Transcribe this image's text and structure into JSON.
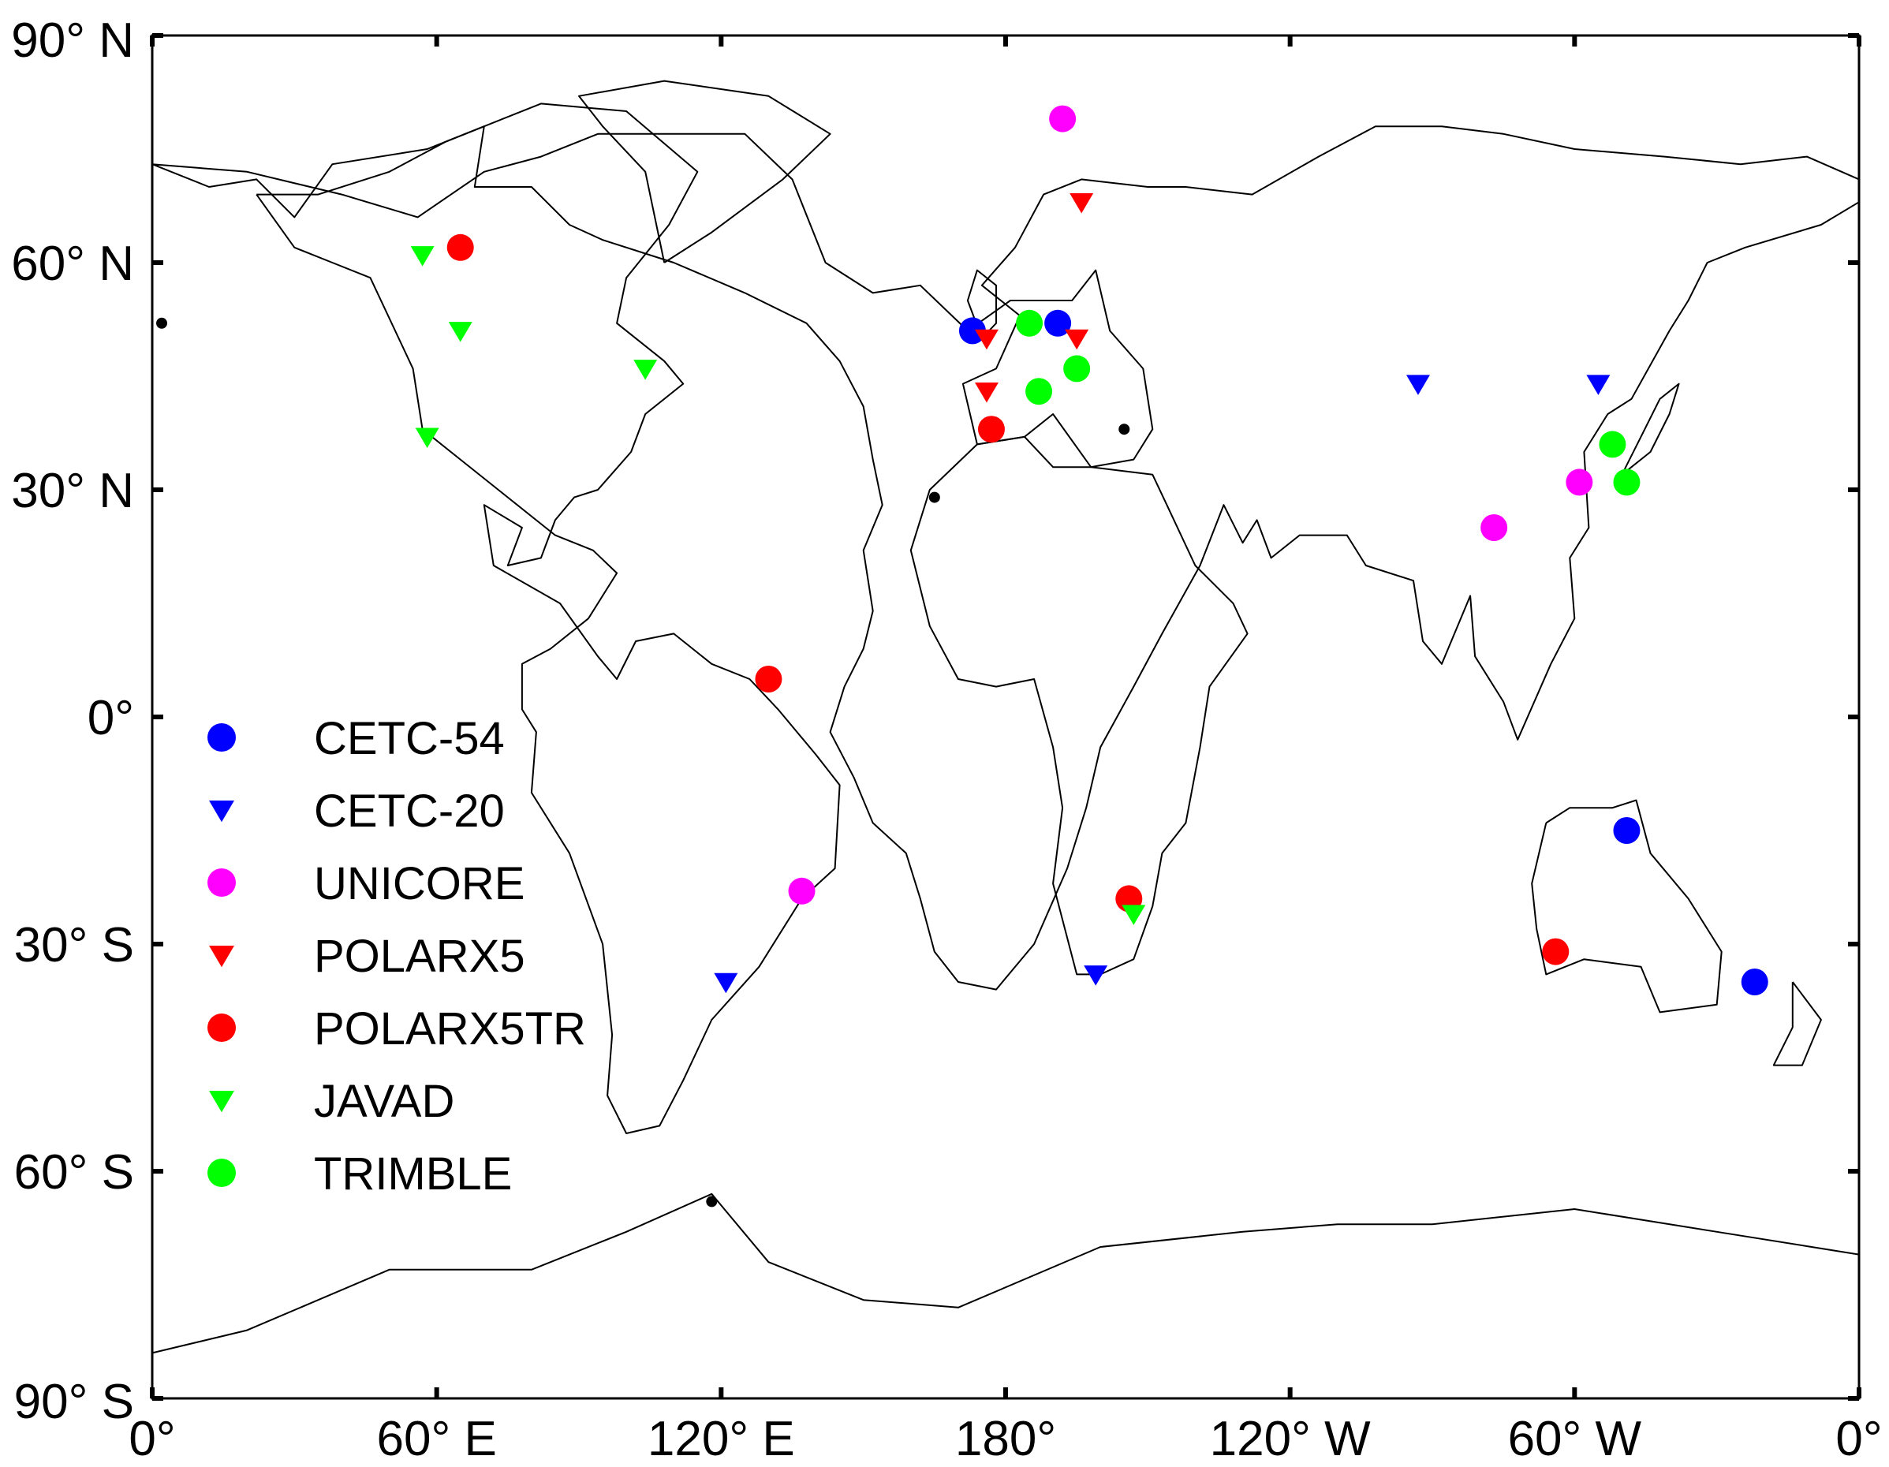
{
  "map": {
    "projection": "equirectangular",
    "lon_range_east": [
      0,
      360
    ],
    "lat_range": [
      -90,
      90
    ],
    "x_ticks": [
      {
        "lon_east": 0,
        "label": "0°"
      },
      {
        "lon_east": 60,
        "label": "60° E"
      },
      {
        "lon_east": 120,
        "label": "120° E"
      },
      {
        "lon_east": 180,
        "label": "180°"
      },
      {
        "lon_east": 240,
        "label": "120° W"
      },
      {
        "lon_east": 300,
        "label": "60° W"
      },
      {
        "lon_east": 360,
        "label": "0°"
      }
    ],
    "y_ticks": [
      {
        "lat": 90,
        "label": "90° N"
      },
      {
        "lat": 60,
        "label": "60° N"
      },
      {
        "lat": 30,
        "label": "30° N"
      },
      {
        "lat": 0,
        "label": "0°"
      },
      {
        "lat": -30,
        "label": "30° S"
      },
      {
        "lat": -60,
        "label": "60° S"
      },
      {
        "lat": -90,
        "label": "90° S"
      }
    ]
  },
  "legend": {
    "placement": "lower-left",
    "entries": [
      {
        "label": "CETC-54",
        "marker": "circle",
        "color": "#0000ff"
      },
      {
        "label": "CETC-20",
        "marker": "triangle",
        "color": "#0000ff"
      },
      {
        "label": "UNICORE",
        "marker": "circle",
        "color": "#ff00ff"
      },
      {
        "label": "POLARX5",
        "marker": "triangle",
        "color": "#ff0000"
      },
      {
        "label": "POLARX5TR",
        "marker": "circle",
        "color": "#ff0000"
      },
      {
        "label": "JAVAD",
        "marker": "triangle",
        "color": "#00ff00"
      },
      {
        "label": "TRIMBLE",
        "marker": "circle",
        "color": "#00ff00"
      }
    ]
  },
  "stations": [
    {
      "receiver": "CETC-54",
      "lon_east": 173,
      "lat": 51
    },
    {
      "receiver": "CETC-54",
      "lon_east": 191,
      "lat": 52
    },
    {
      "receiver": "CETC-54",
      "lon_east": 311,
      "lat": -15
    },
    {
      "receiver": "CETC-54",
      "lon_east": 338,
      "lat": -35
    },
    {
      "receiver": "CETC-20",
      "lon_east": 121,
      "lat": -35
    },
    {
      "receiver": "CETC-20",
      "lon_east": 199,
      "lat": -34
    },
    {
      "receiver": "CETC-20",
      "lon_east": 267,
      "lat": 44
    },
    {
      "receiver": "CETC-20",
      "lon_east": 305,
      "lat": 44
    },
    {
      "receiver": "UNICORE",
      "lon_east": 137,
      "lat": -23
    },
    {
      "receiver": "UNICORE",
      "lon_east": 192,
      "lat": 79
    },
    {
      "receiver": "UNICORE",
      "lon_east": 283,
      "lat": 25
    },
    {
      "receiver": "UNICORE",
      "lon_east": 301,
      "lat": 31
    },
    {
      "receiver": "POLARX5",
      "lon_east": 176,
      "lat": 50
    },
    {
      "receiver": "POLARX5",
      "lon_east": 196,
      "lat": 68
    },
    {
      "receiver": "POLARX5",
      "lon_east": 195,
      "lat": 50
    },
    {
      "receiver": "POLARX5",
      "lon_east": 176,
      "lat": 43
    },
    {
      "receiver": "POLARX5TR",
      "lon_east": 65,
      "lat": 62
    },
    {
      "receiver": "POLARX5TR",
      "lon_east": 130,
      "lat": 5
    },
    {
      "receiver": "POLARX5TR",
      "lon_east": 177,
      "lat": 38
    },
    {
      "receiver": "POLARX5TR",
      "lon_east": 206,
      "lat": -24
    },
    {
      "receiver": "POLARX5TR",
      "lon_east": 296,
      "lat": -31
    },
    {
      "receiver": "JAVAD",
      "lon_east": 57,
      "lat": 61
    },
    {
      "receiver": "JAVAD",
      "lon_east": 65,
      "lat": 51
    },
    {
      "receiver": "JAVAD",
      "lon_east": 58,
      "lat": 37
    },
    {
      "receiver": "JAVAD",
      "lon_east": 104,
      "lat": 46
    },
    {
      "receiver": "JAVAD",
      "lon_east": 207,
      "lat": -26
    },
    {
      "receiver": "TRIMBLE",
      "lon_east": 185,
      "lat": 52
    },
    {
      "receiver": "TRIMBLE",
      "lon_east": 187,
      "lat": 43
    },
    {
      "receiver": "TRIMBLE",
      "lon_east": 195,
      "lat": 46
    },
    {
      "receiver": "TRIMBLE",
      "lon_east": 308,
      "lat": 36
    },
    {
      "receiver": "TRIMBLE",
      "lon_east": 311,
      "lat": 31
    }
  ],
  "small_markers": [
    {
      "lon_east": 2,
      "lat": 52
    },
    {
      "lon_east": 165,
      "lat": 29
    },
    {
      "lon_east": 205,
      "lat": 38
    },
    {
      "lon_east": 118,
      "lat": -64
    }
  ],
  "coastlines": [
    {
      "name": "eurasia-africa",
      "points": [
        [
          0,
          73
        ],
        [
          12,
          70
        ],
        [
          22,
          71
        ],
        [
          30,
          66
        ],
        [
          38,
          73
        ],
        [
          58,
          75
        ],
        [
          70,
          78
        ],
        [
          68,
          70
        ],
        [
          80,
          70
        ],
        [
          88,
          65
        ],
        [
          95,
          63
        ],
        [
          110,
          60
        ],
        [
          125,
          56
        ],
        [
          138,
          52
        ],
        [
          145,
          47
        ],
        [
          150,
          41
        ],
        [
          152,
          34
        ],
        [
          154,
          28
        ],
        [
          150,
          22
        ],
        [
          152,
          14
        ],
        [
          150,
          9
        ],
        [
          146,
          4
        ],
        [
          143,
          -2
        ],
        [
          148,
          -8
        ],
        [
          152,
          -14
        ],
        [
          159,
          -18
        ],
        [
          162,
          -24
        ],
        [
          165,
          -31
        ],
        [
          170,
          -35
        ],
        [
          178,
          -36
        ],
        [
          186,
          -30
        ],
        [
          193,
          -20
        ],
        [
          197,
          -12
        ],
        [
          200,
          -4
        ],
        [
          207,
          4
        ],
        [
          213,
          11
        ],
        [
          221,
          20
        ],
        [
          226,
          28
        ],
        [
          230,
          23
        ],
        [
          233,
          26
        ],
        [
          236,
          21
        ],
        [
          242,
          24
        ],
        [
          252,
          24
        ],
        [
          256,
          20
        ],
        [
          266,
          18
        ],
        [
          268,
          10
        ],
        [
          272,
          7
        ],
        [
          278,
          16
        ],
        [
          279,
          8
        ],
        [
          285,
          2
        ],
        [
          288,
          -3
        ],
        [
          295,
          7
        ],
        [
          300,
          13
        ],
        [
          299,
          21
        ],
        [
          303,
          25
        ],
        [
          302,
          35
        ],
        [
          307,
          40
        ],
        [
          312,
          42
        ],
        [
          320,
          51
        ],
        [
          324,
          55
        ],
        [
          328,
          60
        ],
        [
          336,
          62
        ],
        [
          352,
          65
        ],
        [
          360,
          68
        ],
        [
          360,
          71
        ],
        [
          349,
          74
        ],
        [
          335,
          73
        ],
        [
          319,
          74
        ],
        [
          300,
          75
        ],
        [
          285,
          77
        ],
        [
          272,
          78
        ],
        [
          258,
          78
        ],
        [
          246,
          74
        ],
        [
          232,
          69
        ],
        [
          218,
          70
        ],
        [
          210,
          70
        ],
        [
          196,
          71
        ],
        [
          188,
          69
        ],
        [
          182,
          62
        ],
        [
          175,
          57
        ],
        [
          183,
          53
        ],
        [
          178,
          46
        ],
        [
          171,
          44
        ],
        [
          174,
          36
        ],
        [
          184,
          37
        ],
        [
          190,
          40
        ],
        [
          198,
          33
        ],
        [
          207,
          34
        ],
        [
          211,
          38
        ],
        [
          209,
          46
        ],
        [
          202,
          51
        ],
        [
          199,
          59
        ],
        [
          194,
          55
        ],
        [
          181,
          55
        ],
        [
          172,
          51
        ],
        [
          162,
          57
        ],
        [
          152,
          56
        ],
        [
          142,
          60
        ],
        [
          135,
          71
        ],
        [
          125,
          77
        ],
        [
          103,
          77
        ],
        [
          94,
          77
        ],
        [
          82,
          74
        ],
        [
          70,
          72
        ],
        [
          56,
          66
        ],
        [
          40,
          69
        ],
        [
          20,
          72
        ],
        [
          0,
          73
        ]
      ]
    },
    {
      "name": "africa",
      "points": [
        [
          174,
          36
        ],
        [
          164,
          30
        ],
        [
          160,
          22
        ],
        [
          164,
          12
        ],
        [
          170,
          5
        ],
        [
          178,
          4
        ],
        [
          186,
          5
        ],
        [
          190,
          -4
        ],
        [
          192,
          -12
        ],
        [
          190,
          -22
        ],
        [
          195,
          -34
        ],
        [
          200,
          -34
        ],
        [
          207,
          -32
        ],
        [
          211,
          -25
        ],
        [
          213,
          -18
        ],
        [
          218,
          -14
        ],
        [
          221,
          -4
        ],
        [
          223,
          4
        ],
        [
          231,
          11
        ],
        [
          228,
          15
        ],
        [
          220,
          20
        ],
        [
          214,
          28
        ],
        [
          211,
          32
        ],
        [
          198,
          33
        ],
        [
          190,
          33
        ],
        [
          184,
          37
        ],
        [
          174,
          36
        ]
      ]
    },
    {
      "name": "americas",
      "points": [
        [
          22,
          69
        ],
        [
          35,
          69
        ],
        [
          50,
          72
        ],
        [
          62,
          76
        ],
        [
          82,
          81
        ],
        [
          100,
          80
        ],
        [
          115,
          72
        ],
        [
          109,
          65
        ],
        [
          100,
          58
        ],
        [
          98,
          52
        ],
        [
          108,
          47
        ],
        [
          112,
          44
        ],
        [
          104,
          40
        ],
        [
          101,
          35
        ],
        [
          94,
          30
        ],
        [
          89,
          29
        ],
        [
          85,
          26
        ],
        [
          82,
          21
        ],
        [
          75,
          20
        ],
        [
          78,
          25
        ],
        [
          70,
          28
        ],
        [
          72,
          20
        ],
        [
          86,
          15
        ],
        [
          94,
          8
        ],
        [
          98,
          5
        ],
        [
          102,
          10
        ],
        [
          110,
          11
        ],
        [
          118,
          7
        ],
        [
          126,
          5
        ],
        [
          132,
          1
        ],
        [
          140,
          -5
        ],
        [
          145,
          -9
        ],
        [
          144,
          -20
        ],
        [
          137,
          -24
        ],
        [
          128,
          -33
        ],
        [
          118,
          -40
        ],
        [
          112,
          -48
        ],
        [
          107,
          -54
        ],
        [
          100,
          -55
        ],
        [
          96,
          -50
        ],
        [
          97,
          -42
        ],
        [
          95,
          -30
        ],
        [
          88,
          -18
        ],
        [
          80,
          -10
        ],
        [
          81,
          -2
        ],
        [
          78,
          1
        ],
        [
          78,
          7
        ],
        [
          84,
          9
        ],
        [
          92,
          13
        ],
        [
          98,
          19
        ],
        [
          93,
          22
        ],
        [
          85,
          24
        ],
        [
          75,
          29
        ],
        [
          65,
          34
        ],
        [
          57,
          38
        ],
        [
          55,
          46
        ],
        [
          46,
          58
        ],
        [
          38,
          60
        ],
        [
          30,
          62
        ],
        [
          22,
          69
        ]
      ]
    },
    {
      "name": "greenland",
      "points": [
        [
          108,
          60
        ],
        [
          118,
          64
        ],
        [
          133,
          71
        ],
        [
          143,
          77
        ],
        [
          130,
          82
        ],
        [
          108,
          84
        ],
        [
          90,
          82
        ],
        [
          95,
          78
        ],
        [
          104,
          72
        ],
        [
          108,
          60
        ]
      ]
    },
    {
      "name": "australia",
      "points": [
        [
          294,
          -14
        ],
        [
          299,
          -12
        ],
        [
          308,
          -12
        ],
        [
          313,
          -11
        ],
        [
          316,
          -18
        ],
        [
          324,
          -24
        ],
        [
          331,
          -31
        ],
        [
          330,
          -38
        ],
        [
          318,
          -39
        ],
        [
          314,
          -33
        ],
        [
          302,
          -32
        ],
        [
          294,
          -34
        ],
        [
          292,
          -28
        ],
        [
          291,
          -22
        ],
        [
          294,
          -14
        ]
      ]
    },
    {
      "name": "antarctica",
      "points": [
        [
          0,
          -84
        ],
        [
          20,
          -81
        ],
        [
          50,
          -73
        ],
        [
          80,
          -73
        ],
        [
          100,
          -68
        ],
        [
          118,
          -63
        ],
        [
          130,
          -72
        ],
        [
          150,
          -77
        ],
        [
          170,
          -78
        ],
        [
          200,
          -70
        ],
        [
          230,
          -68
        ],
        [
          250,
          -67
        ],
        [
          270,
          -67
        ],
        [
          300,
          -65
        ],
        [
          330,
          -68
        ],
        [
          350,
          -70
        ],
        [
          360,
          -71
        ]
      ]
    },
    {
      "name": "new-zealand",
      "points": [
        [
          346,
          -35
        ],
        [
          352,
          -40
        ],
        [
          348,
          -46
        ],
        [
          342,
          -46
        ],
        [
          346,
          -41
        ],
        [
          346,
          -35
        ]
      ]
    },
    {
      "name": "japan",
      "points": [
        [
          310,
          32
        ],
        [
          316,
          35
        ],
        [
          320,
          40
        ],
        [
          322,
          44
        ],
        [
          318,
          42
        ],
        [
          314,
          37
        ],
        [
          310,
          32
        ]
      ]
    },
    {
      "name": "uk",
      "points": [
        [
          175,
          50
        ],
        [
          178,
          52
        ],
        [
          178,
          57
        ],
        [
          174,
          59
        ],
        [
          172,
          55
        ],
        [
          175,
          50
        ]
      ]
    }
  ]
}
